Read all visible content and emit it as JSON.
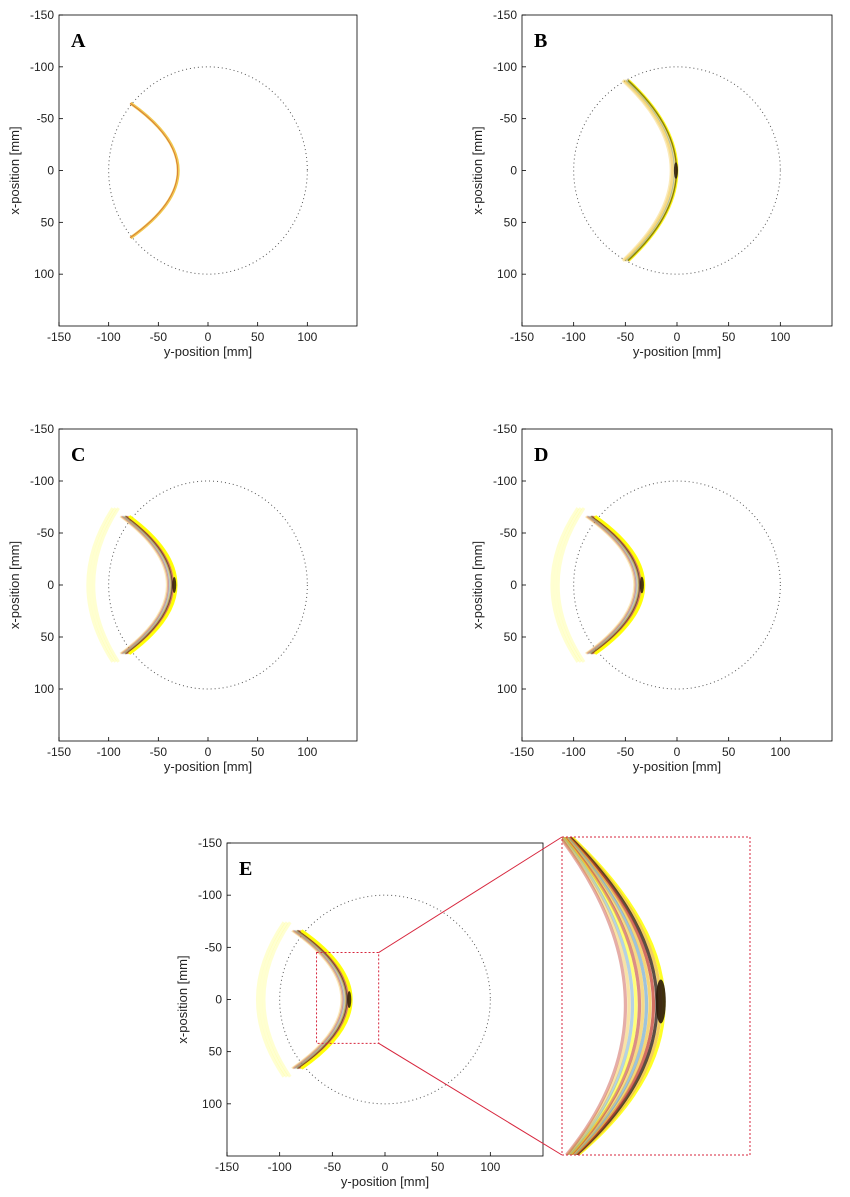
{
  "figure": {
    "colors": {
      "axis": "#000000",
      "domain": "#555555",
      "wave_warm": "#f0c23a",
      "wave_yellow": "#ffff00",
      "wave_dark": "#2b1a0a",
      "wave_red": "#c0392b",
      "wave_blue": "#6aa3c8",
      "inset_border": "#d7263d"
    }
  },
  "chart_data": [
    {
      "panel": "A",
      "type": "heatmap",
      "xlabel": "y-position [mm]",
      "ylabel": "x-position [mm]",
      "xlim": [
        -150,
        150
      ],
      "ylim": [
        -150,
        150
      ],
      "x_ticks": [
        -150,
        -100,
        -50,
        0,
        50,
        100
      ],
      "y_ticks": [
        -150,
        -100,
        -50,
        0,
        50,
        100
      ],
      "y_axis_reversed": true,
      "domain_circle": {
        "center": [
          0,
          0
        ],
        "radius": 100,
        "style": "dotted"
      },
      "wavefront": {
        "apex_y": -30,
        "edge_y": -78,
        "half_span_x": 65,
        "band_width": 2,
        "style": "thin"
      }
    },
    {
      "panel": "B",
      "type": "heatmap",
      "xlabel": "y-position [mm]",
      "ylabel": "x-position [mm]",
      "xlim": [
        -150,
        150
      ],
      "ylim": [
        -150,
        150
      ],
      "x_ticks": [
        -150,
        -100,
        -50,
        0,
        50,
        100
      ],
      "y_ticks": [
        -150,
        -100,
        -50,
        0,
        50,
        100
      ],
      "y_axis_reversed": true,
      "domain_circle": {
        "center": [
          0,
          0
        ],
        "radius": 100,
        "style": "dotted"
      },
      "wavefront": {
        "apex_y": 0,
        "edge_y": -47,
        "half_span_x": 87,
        "band_width": 4,
        "style": "broad"
      }
    },
    {
      "panel": "C",
      "type": "heatmap",
      "xlabel": "y-position [mm]",
      "ylabel": "x-position [mm]",
      "xlim": [
        -150,
        150
      ],
      "ylim": [
        -150,
        150
      ],
      "x_ticks": [
        -150,
        -100,
        -50,
        0,
        50,
        100
      ],
      "y_ticks": [
        -150,
        -100,
        -50,
        0,
        50,
        100
      ],
      "y_axis_reversed": true,
      "domain_circle": {
        "center": [
          0,
          0
        ],
        "radius": 100,
        "style": "dotted"
      },
      "wavefront": {
        "apex_y": -33,
        "edge_y": -80,
        "half_span_x": 66,
        "band_width": 8,
        "style": "multi"
      }
    },
    {
      "panel": "D",
      "type": "heatmap",
      "xlabel": "y-position [mm]",
      "ylabel": "x-position [mm]",
      "xlim": [
        -150,
        150
      ],
      "ylim": [
        -150,
        150
      ],
      "x_ticks": [
        -150,
        -100,
        -50,
        0,
        50,
        100
      ],
      "y_ticks": [
        -150,
        -100,
        -50,
        0,
        50,
        100
      ],
      "y_axis_reversed": true,
      "domain_circle": {
        "center": [
          0,
          0
        ],
        "radius": 100,
        "style": "dotted"
      },
      "wavefront": {
        "apex_y": -33,
        "edge_y": -80,
        "half_span_x": 66,
        "band_width": 8,
        "style": "multi"
      }
    },
    {
      "panel": "E",
      "type": "heatmap",
      "xlabel": "y-position [mm]",
      "ylabel": "x-position [mm]",
      "xlim": [
        -150,
        150
      ],
      "ylim": [
        -150,
        150
      ],
      "x_ticks": [
        -150,
        -100,
        -50,
        0,
        50,
        100
      ],
      "y_ticks": [
        -150,
        -100,
        -50,
        0,
        50,
        100
      ],
      "y_axis_reversed": true,
      "domain_circle": {
        "center": [
          0,
          0
        ],
        "radius": 100,
        "style": "dotted"
      },
      "wavefront": {
        "apex_y": -33,
        "edge_y": -80,
        "half_span_x": 66,
        "band_width": 8,
        "style": "multi"
      },
      "zoom_region": {
        "y_range": [
          -65,
          -6
        ],
        "x_range": [
          -45,
          42
        ]
      }
    }
  ]
}
